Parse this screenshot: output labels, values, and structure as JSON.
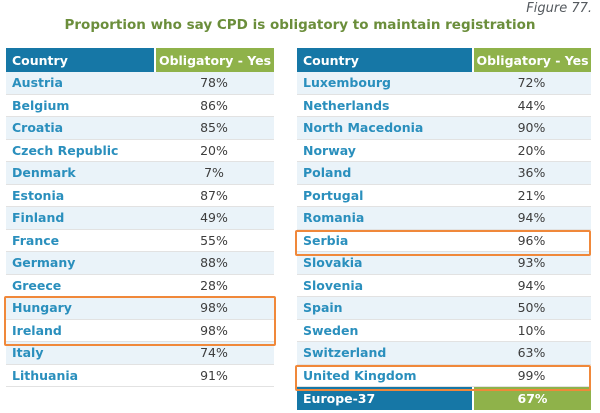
{
  "figure_label": "Figure 77.",
  "title": "Proportion who say CPD is obligatory to maintain registration",
  "highlight_color": "#f0883a",
  "header_colors": {
    "country": "#1677a6",
    "value": "#8fb24a"
  },
  "left_table": {
    "headers": {
      "country": "Country",
      "value": "Obligatory - Yes"
    },
    "rows": [
      {
        "country": "Austria",
        "value": "78%"
      },
      {
        "country": "Belgium",
        "value": "86%"
      },
      {
        "country": "Croatia",
        "value": "85%"
      },
      {
        "country": "Czech Republic",
        "value": "20%"
      },
      {
        "country": "Denmark",
        "value": "7%"
      },
      {
        "country": "Estonia",
        "value": "87%"
      },
      {
        "country": "Finland",
        "value": "49%"
      },
      {
        "country": "France",
        "value": "55%"
      },
      {
        "country": "Germany",
        "value": "88%"
      },
      {
        "country": "Greece",
        "value": "28%"
      },
      {
        "country": "Hungary",
        "value": "98%"
      },
      {
        "country": "Ireland",
        "value": "98%"
      },
      {
        "country": "Italy",
        "value": "74%"
      },
      {
        "country": "Lithuania",
        "value": "91%"
      }
    ]
  },
  "right_table": {
    "headers": {
      "country": "Country",
      "value": "Obligatory - Yes"
    },
    "rows": [
      {
        "country": "Luxembourg",
        "value": "72%"
      },
      {
        "country": "Netherlands",
        "value": "44%"
      },
      {
        "country": "North Macedonia",
        "value": "90%"
      },
      {
        "country": "Norway",
        "value": "20%"
      },
      {
        "country": "Poland",
        "value": "36%"
      },
      {
        "country": "Portugal",
        "value": "21%"
      },
      {
        "country": "Romania",
        "value": "94%"
      },
      {
        "country": "Serbia",
        "value": "96%"
      },
      {
        "country": "Slovakia",
        "value": "93%"
      },
      {
        "country": "Slovenia",
        "value": "94%"
      },
      {
        "country": "Spain",
        "value": "50%"
      },
      {
        "country": "Sweden",
        "value": "10%"
      },
      {
        "country": "Switzerland",
        "value": "63%"
      },
      {
        "country": "United Kingdom",
        "value": "99%"
      }
    ],
    "total": {
      "country": "Europe-37",
      "value": "67%"
    }
  },
  "highlighted_rows": [
    "Hungary",
    "Ireland",
    "Serbia",
    "United Kingdom"
  ]
}
